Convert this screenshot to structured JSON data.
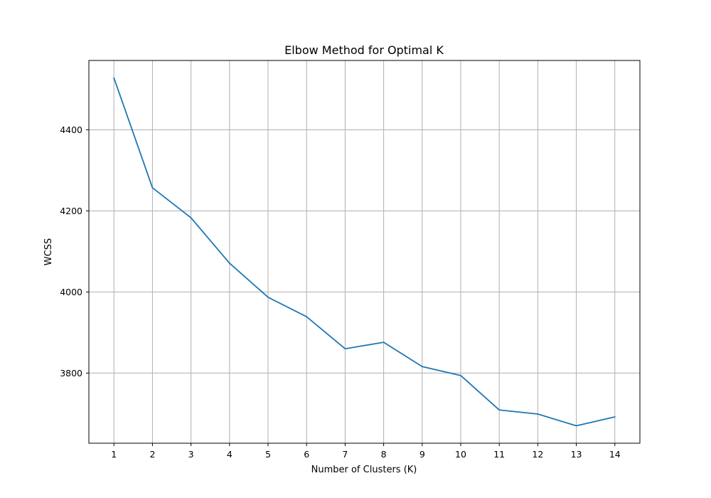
{
  "chart_data": {
    "type": "line",
    "title": "Elbow Method for Optimal K",
    "xlabel": "Number of Clusters (K)",
    "ylabel": "WCSS",
    "x": [
      1,
      2,
      3,
      4,
      5,
      6,
      7,
      8,
      9,
      10,
      11,
      12,
      13,
      14
    ],
    "series": [
      {
        "values": [
          4528,
          4257,
          4183,
          4071,
          3987,
          3939,
          3860,
          3876,
          3816,
          3794,
          3709,
          3699,
          3670,
          3692
        ],
        "color": "#1f77b4"
      }
    ],
    "xticks": [
      "1",
      "2",
      "3",
      "4",
      "5",
      "6",
      "7",
      "8",
      "9",
      "10",
      "11",
      "12",
      "13",
      "14"
    ],
    "yticks": [
      "3800",
      "4000",
      "4200",
      "4400"
    ],
    "xlim": [
      0.35,
      14.65
    ],
    "ylim": [
      3627,
      4571
    ],
    "grid": true,
    "legend": false
  }
}
